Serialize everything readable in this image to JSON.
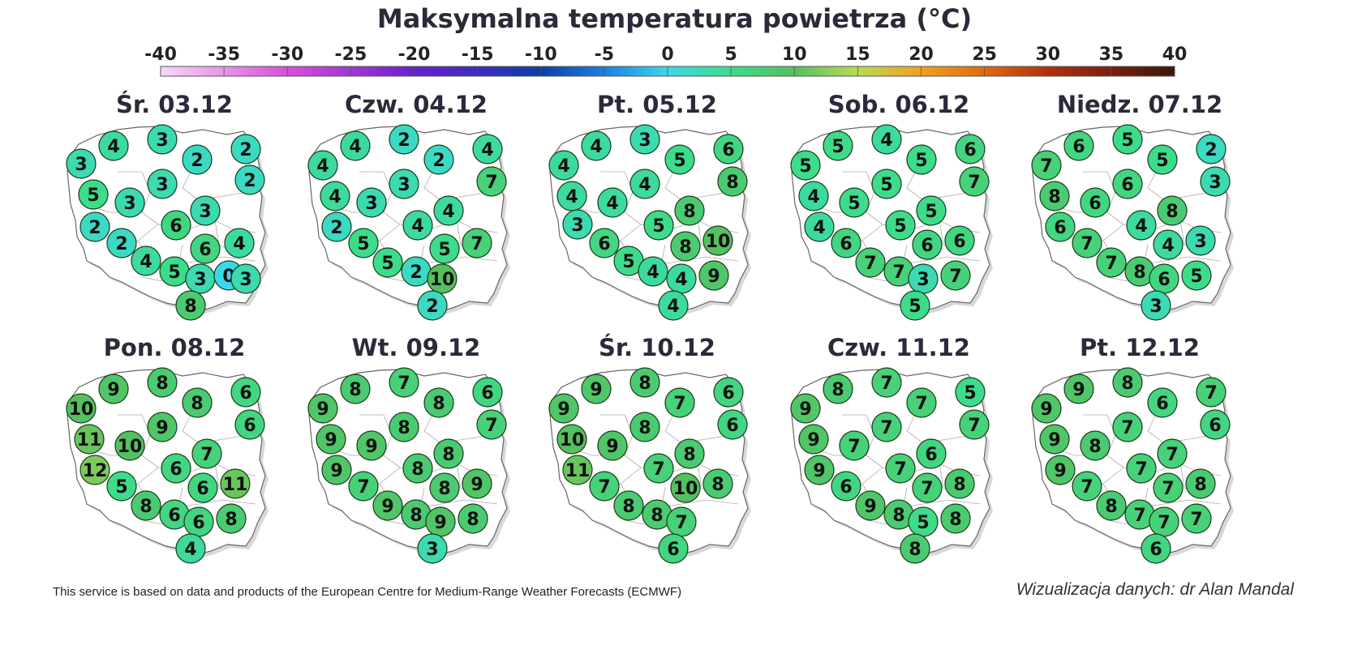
{
  "title": "Maksymalna temperatura powietrza (°C)",
  "legend": {
    "ticks": [
      -40,
      -35,
      -30,
      -25,
      -20,
      -15,
      -10,
      -5,
      0,
      5,
      10,
      15,
      20,
      25,
      30,
      35,
      40
    ],
    "min": -40,
    "max": 40,
    "colors": {
      "-40": "#f7d8f7",
      "-30": "#d84fd8",
      "-20": "#6a1fd0",
      "-10": "#0a3fa8",
      "-5": "#1e7fe0",
      "0": "#3ad8e8",
      "5": "#3ddc8a",
      "10": "#55c060",
      "15": "#b8dc55",
      "20": "#f0a020",
      "25": "#e06a10",
      "30": "#b03010",
      "35": "#7a2010",
      "40": "#3a1808"
    }
  },
  "chart_data": {
    "type": "map",
    "days": [
      {
        "label": "Śr. 03.12",
        "values": [
          3,
          4,
          3,
          2,
          2,
          3,
          2,
          5,
          3,
          3,
          2,
          6,
          2,
          4,
          6,
          4,
          5,
          3,
          0,
          8,
          3
        ]
      },
      {
        "label": "Czw. 04.12",
        "values": [
          4,
          4,
          2,
          2,
          4,
          3,
          7,
          4,
          3,
          4,
          2,
          4,
          5,
          5,
          7,
          5,
          2,
          10,
          2
        ]
      },
      {
        "label": "Pt. 05.12",
        "values": [
          4,
          4,
          3,
          5,
          6,
          4,
          8,
          4,
          4,
          8,
          3,
          5,
          10,
          6,
          8,
          5,
          4,
          4,
          9,
          4
        ]
      },
      {
        "label": "Sob. 06.12",
        "values": [
          5,
          5,
          4,
          5,
          6,
          5,
          7,
          4,
          5,
          5,
          4,
          5,
          6,
          6,
          6,
          7,
          7,
          3,
          7,
          5
        ]
      },
      {
        "label": "Niedz. 07.12",
        "values": [
          7,
          6,
          5,
          5,
          2,
          6,
          3,
          8,
          6,
          8,
          6,
          4,
          7,
          4,
          3,
          7,
          8,
          6,
          5,
          3
        ]
      },
      {
        "label": "Pon. 08.12",
        "values": [
          10,
          9,
          8,
          8,
          6,
          9,
          6,
          11,
          10,
          7,
          12,
          6,
          5,
          6,
          11,
          8,
          6,
          6,
          8,
          4
        ]
      },
      {
        "label": "Wt. 09.12",
        "values": [
          9,
          8,
          7,
          8,
          6,
          8,
          7,
          9,
          9,
          8,
          9,
          8,
          7,
          8,
          9,
          9,
          8,
          9,
          8,
          3
        ]
      },
      {
        "label": "Śr. 10.12",
        "values": [
          9,
          9,
          8,
          7,
          6,
          8,
          6,
          10,
          9,
          8,
          11,
          7,
          7,
          10,
          8,
          8,
          8,
          7,
          6
        ]
      },
      {
        "label": "Czw. 11.12",
        "values": [
          9,
          8,
          7,
          7,
          5,
          7,
          7,
          9,
          7,
          6,
          9,
          7,
          6,
          7,
          8,
          9,
          8,
          5,
          8,
          8
        ]
      },
      {
        "label": "Pt. 12.12",
        "values": [
          9,
          9,
          8,
          6,
          7,
          7,
          6,
          9,
          8,
          7,
          9,
          7,
          7,
          7,
          8,
          8,
          7,
          7,
          7,
          6
        ]
      }
    ]
  },
  "footer": {
    "credit": "This service is based on data and products of the European Centre for Medium-Range Weather Forecasts (ECMWF)",
    "author": "Wizualizacja danych: dr Alan Mandal"
  }
}
